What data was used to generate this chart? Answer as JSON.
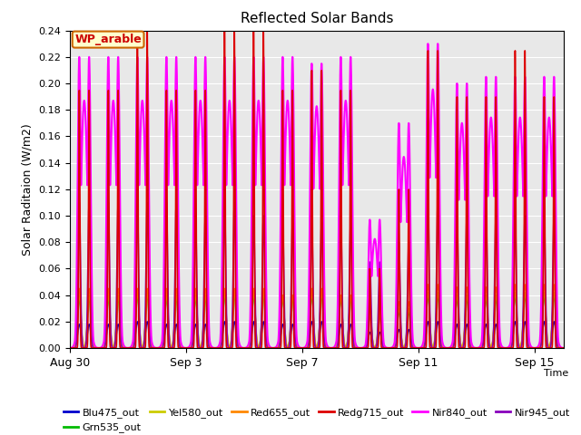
{
  "title": "Reflected Solar Bands",
  "ylabel_text": "Solar Raditaion (W/m2)",
  "xlabel_text": "Time",
  "ylim": [
    0.0,
    0.24
  ],
  "yticks": [
    0.0,
    0.02,
    0.04,
    0.06,
    0.08,
    0.1,
    0.12,
    0.14,
    0.16,
    0.18,
    0.2,
    0.22,
    0.24
  ],
  "xtick_positions": [
    0,
    4,
    8,
    12,
    16
  ],
  "xtick_labels": [
    "Aug 30",
    "Sep 3",
    "Sep 7",
    "Sep 11",
    "Sep 15"
  ],
  "annotation_text": "WP_arable",
  "bg_color": "#e8e8e8",
  "lines": {
    "Blu475_out": {
      "color": "#0000cc",
      "lw": 1.0
    },
    "Grn535_out": {
      "color": "#00bb00",
      "lw": 1.0
    },
    "Yel580_out": {
      "color": "#cccc00",
      "lw": 1.0
    },
    "Red655_out": {
      "color": "#ff8800",
      "lw": 1.0
    },
    "Redg715_out": {
      "color": "#dd0000",
      "lw": 1.2
    },
    "Nir840_out": {
      "color": "#ff00ff",
      "lw": 1.5
    },
    "Nir945_out": {
      "color": "#8800bb",
      "lw": 1.2
    }
  },
  "legend_order": [
    "Blu475_out",
    "Grn535_out",
    "Yel580_out",
    "Red655_out",
    "Redg715_out",
    "Nir840_out",
    "Nir945_out"
  ],
  "n_days": 17,
  "spd": 288,
  "peaks_Nir840": [
    0.22,
    0.22,
    0.22,
    0.22,
    0.22,
    0.22,
    0.22,
    0.22,
    0.215,
    0.22,
    0.097,
    0.17,
    0.23,
    0.2,
    0.205,
    0.205,
    0.205
  ],
  "peaks_Redg715": [
    0.195,
    0.195,
    0.24,
    0.195,
    0.195,
    0.24,
    0.24,
    0.195,
    0.21,
    0.195,
    0.06,
    0.12,
    0.225,
    0.19,
    0.19,
    0.225,
    0.19
  ],
  "peaks_Nir945": [
    0.11,
    0.11,
    0.11,
    0.11,
    0.1,
    0.11,
    0.1,
    0.095,
    0.095,
    0.095,
    0.065,
    0.08,
    0.11,
    0.1,
    0.1,
    0.1,
    0.1
  ],
  "peaks_Red655": [
    0.045,
    0.045,
    0.045,
    0.045,
    0.045,
    0.045,
    0.045,
    0.04,
    0.045,
    0.04,
    0.03,
    0.035,
    0.048,
    0.046,
    0.046,
    0.048,
    0.048
  ],
  "peaks_Grn535": [
    0.038,
    0.038,
    0.04,
    0.038,
    0.038,
    0.04,
    0.04,
    0.038,
    0.04,
    0.038,
    0.025,
    0.028,
    0.04,
    0.038,
    0.038,
    0.04,
    0.04
  ],
  "peaks_Yel580": [
    0.04,
    0.04,
    0.042,
    0.04,
    0.04,
    0.042,
    0.042,
    0.04,
    0.042,
    0.04,
    0.026,
    0.03,
    0.042,
    0.04,
    0.04,
    0.042,
    0.042
  ],
  "peaks_Blu475": [
    0.018,
    0.018,
    0.02,
    0.018,
    0.018,
    0.02,
    0.02,
    0.018,
    0.02,
    0.018,
    0.012,
    0.014,
    0.02,
    0.018,
    0.018,
    0.02,
    0.02
  ]
}
